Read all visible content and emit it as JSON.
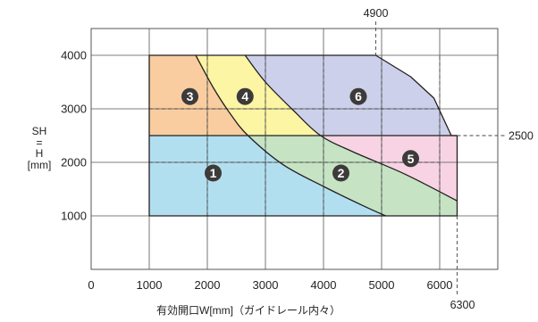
{
  "chart_data": {
    "type": "area",
    "title": "",
    "xlabel": "有効開口W[mm]（ガイドレール内々）",
    "ylabel": {
      "top": "SH",
      "eq": "=",
      "mid": "H",
      "unit": "[mm]"
    },
    "xlim": [
      0,
      7000
    ],
    "ylim": [
      0,
      4500
    ],
    "x_ticks": [
      0,
      1000,
      2000,
      3000,
      4000,
      5000,
      6000
    ],
    "y_ticks": [
      1000,
      2000,
      3000,
      4000
    ],
    "grid": true,
    "colors": {
      "zone1": "#b2dff0",
      "zone2": "#c6e4c4",
      "zone3": "#f9cda0",
      "zone4": "#fbf5a4",
      "zone5": "#f7d3e3",
      "zone6": "#ccd0ea",
      "line": "#231f20",
      "grid": "#555555",
      "badge": "#3d3a3a"
    },
    "boundary": [
      [
        1000,
        1000
      ],
      [
        1000,
        4000
      ],
      [
        4900,
        4000
      ],
      [
        5500,
        3600
      ],
      [
        5900,
        3200
      ],
      [
        6200,
        2500
      ],
      [
        6300,
        2500
      ],
      [
        6300,
        1000
      ]
    ],
    "curves": [
      {
        "name": "curve-a",
        "points": [
          [
            1800,
            4000
          ],
          [
            2100,
            3400
          ],
          [
            2400,
            2900
          ],
          [
            2700,
            2500
          ],
          [
            3300,
            1960
          ],
          [
            4000,
            1550
          ],
          [
            4700,
            1180
          ],
          [
            5070,
            1000
          ]
        ]
      },
      {
        "name": "curve-b",
        "points": [
          [
            2650,
            4000
          ],
          [
            3000,
            3500
          ],
          [
            3500,
            2950
          ],
          [
            3950,
            2500
          ],
          [
            4500,
            2200
          ],
          [
            5400,
            1780
          ],
          [
            6300,
            1280
          ]
        ]
      }
    ],
    "h_line": 2500,
    "zones": [
      {
        "id": "1",
        "label": "1",
        "x": 2100,
        "y": 1800,
        "points": [
          [
            1000,
            1000
          ],
          [
            1000,
            2500
          ],
          [
            2700,
            2500
          ],
          [
            3300,
            1960
          ],
          [
            4000,
            1550
          ],
          [
            4700,
            1180
          ],
          [
            5070,
            1000
          ]
        ]
      },
      {
        "id": "2",
        "label": "2",
        "x": 4300,
        "y": 1800,
        "points": [
          [
            2700,
            2500
          ],
          [
            3950,
            2500
          ],
          [
            4500,
            2200
          ],
          [
            5400,
            1780
          ],
          [
            6300,
            1280
          ],
          [
            6300,
            1000
          ],
          [
            5070,
            1000
          ],
          [
            4700,
            1180
          ],
          [
            4000,
            1550
          ],
          [
            3300,
            1960
          ]
        ]
      },
      {
        "id": "3",
        "label": "3",
        "x": 1700,
        "y": 3230,
        "points": [
          [
            1000,
            2500
          ],
          [
            1000,
            4000
          ],
          [
            1800,
            4000
          ],
          [
            2100,
            3400
          ],
          [
            2400,
            2900
          ],
          [
            2700,
            2500
          ]
        ]
      },
      {
        "id": "4",
        "label": "4",
        "x": 2650,
        "y": 3230,
        "points": [
          [
            1800,
            4000
          ],
          [
            2650,
            4000
          ],
          [
            3000,
            3500
          ],
          [
            3500,
            2950
          ],
          [
            3950,
            2500
          ],
          [
            2700,
            2500
          ],
          [
            2400,
            2900
          ],
          [
            2100,
            3400
          ]
        ]
      },
      {
        "id": "5",
        "label": "5",
        "x": 5500,
        "y": 2070,
        "points": [
          [
            3950,
            2500
          ],
          [
            6300,
            2500
          ],
          [
            6300,
            1280
          ],
          [
            5400,
            1780
          ],
          [
            4500,
            2200
          ]
        ]
      },
      {
        "id": "6",
        "label": "6",
        "x": 4600,
        "y": 3230,
        "points": [
          [
            2650,
            4000
          ],
          [
            4900,
            4000
          ],
          [
            5500,
            3600
          ],
          [
            5900,
            3200
          ],
          [
            6200,
            2500
          ],
          [
            3950,
            2500
          ],
          [
            3500,
            2950
          ],
          [
            3000,
            3500
          ]
        ]
      }
    ],
    "reference_lines": [
      {
        "axis": "x",
        "value": 4900,
        "label": "4900"
      },
      {
        "axis": "x",
        "value": 6300,
        "label": "6300"
      },
      {
        "axis": "y",
        "value": 2500,
        "label": "2500"
      }
    ]
  }
}
